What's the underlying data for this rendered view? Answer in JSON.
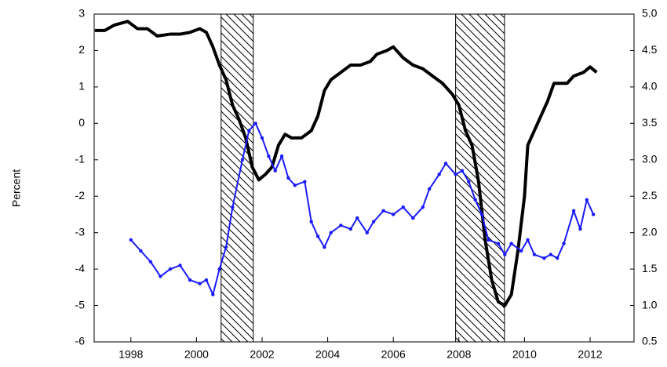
{
  "chart_data": {
    "type": "line",
    "y_label": "Percent",
    "xlim": [
      1996.88,
      2013.34
    ],
    "xticks": [
      1998,
      2000,
      2002,
      2004,
      2006,
      2008,
      2010,
      2012
    ],
    "ylim": [
      -6,
      3
    ],
    "yticks": [
      -6,
      -5,
      -4,
      -3,
      -2,
      -1,
      0,
      1,
      2,
      3
    ],
    "y2lim": [
      0.5,
      5.0
    ],
    "y2ticks": [
      0.5,
      {
        "value": 1.0,
        "label": "1.0"
      },
      1.5,
      {
        "value": 2.0,
        "label": "2.0"
      },
      2.5,
      {
        "value": 3.0,
        "label": "3.0"
      },
      3.5,
      {
        "value": 4.0,
        "label": "4.0"
      },
      4.5,
      {
        "value": 5.0,
        "label": "5.0"
      }
    ],
    "shaded_periods": [
      [
        2000.75,
        2001.73
      ],
      [
        2007.9,
        2009.39
      ]
    ],
    "series": [
      {
        "color": "#000000",
        "axis": "y",
        "x": [
          1996.9,
          1997.2,
          1997.5,
          1997.9,
          1998.2,
          1998.5,
          1998.8,
          1999.2,
          1999.5,
          1999.8,
          2000.1,
          2000.3,
          2000.5,
          2000.7,
          2000.9,
          2001.1,
          2001.3,
          2001.5,
          2001.7,
          2001.9,
          2002.1,
          2002.3,
          2002.5,
          2002.7,
          2002.9,
          2003.2,
          2003.5,
          2003.7,
          2003.9,
          2004.1,
          2004.4,
          2004.7,
          2005.0,
          2005.3,
          2005.5,
          2005.8,
          2006.0,
          2006.3,
          2006.6,
          2006.9,
          2007.2,
          2007.5,
          2007.8,
          2008.0,
          2008.2,
          2008.4,
          2008.6,
          2008.8,
          2009.0,
          2009.2,
          2009.4,
          2009.6,
          2009.8,
          2010.0,
          2010.1,
          2010.4,
          2010.7,
          2010.9,
          2011.1,
          2011.3,
          2011.5,
          2011.8,
          2012.0,
          2012.2
        ],
        "values": [
          2.55,
          2.55,
          2.7,
          2.8,
          2.6,
          2.6,
          2.4,
          2.45,
          2.45,
          2.5,
          2.6,
          2.5,
          2.1,
          1.6,
          1.2,
          0.5,
          0.1,
          -0.4,
          -1.2,
          -1.55,
          -1.4,
          -1.2,
          -0.6,
          -0.3,
          -0.4,
          -0.4,
          -0.2,
          0.2,
          0.9,
          1.2,
          1.4,
          1.6,
          1.6,
          1.7,
          1.9,
          2.0,
          2.1,
          1.8,
          1.6,
          1.5,
          1.3,
          1.1,
          0.8,
          0.5,
          -0.2,
          -0.6,
          -1.6,
          -3.2,
          -4.3,
          -4.9,
          -5.0,
          -4.7,
          -3.5,
          -2.0,
          -0.6,
          0.0,
          0.6,
          1.1,
          1.1,
          1.1,
          1.3,
          1.4,
          1.55,
          1.4
        ]
      },
      {
        "color": "#1a1aff",
        "axis": "y2",
        "x": [
          1998.0,
          1998.3,
          1998.6,
          1998.9,
          1999.2,
          1999.5,
          1999.8,
          2000.1,
          2000.3,
          2000.5,
          2000.7,
          2000.9,
          2001.1,
          2001.4,
          2001.6,
          2001.8,
          2002.0,
          2002.2,
          2002.4,
          2002.6,
          2002.8,
          2003.0,
          2003.3,
          2003.5,
          2003.7,
          2003.9,
          2004.1,
          2004.4,
          2004.7,
          2004.9,
          2005.2,
          2005.4,
          2005.7,
          2006.0,
          2006.3,
          2006.6,
          2006.9,
          2007.1,
          2007.4,
          2007.6,
          2007.9,
          2008.1,
          2008.3,
          2008.5,
          2008.7,
          2008.9,
          2009.2,
          2009.4,
          2009.6,
          2009.9,
          2010.1,
          2010.3,
          2010.6,
          2010.8,
          2011.0,
          2011.2,
          2011.5,
          2011.7,
          2011.9,
          2012.1
        ],
        "values": [
          1.9,
          1.75,
          1.6,
          1.4,
          1.5,
          1.55,
          1.35,
          1.3,
          1.35,
          1.15,
          1.5,
          1.8,
          2.35,
          3.0,
          3.4,
          3.5,
          3.3,
          3.05,
          2.85,
          3.05,
          2.75,
          2.65,
          2.7,
          2.15,
          1.95,
          1.8,
          2.0,
          2.1,
          2.05,
          2.2,
          2.0,
          2.15,
          2.3,
          2.25,
          2.35,
          2.2,
          2.35,
          2.6,
          2.8,
          2.95,
          2.8,
          2.85,
          2.7,
          2.45,
          2.25,
          1.9,
          1.85,
          1.7,
          1.85,
          1.75,
          1.9,
          1.7,
          1.65,
          1.7,
          1.65,
          1.85,
          2.3,
          2.05,
          2.45,
          2.25
        ]
      }
    ]
  }
}
